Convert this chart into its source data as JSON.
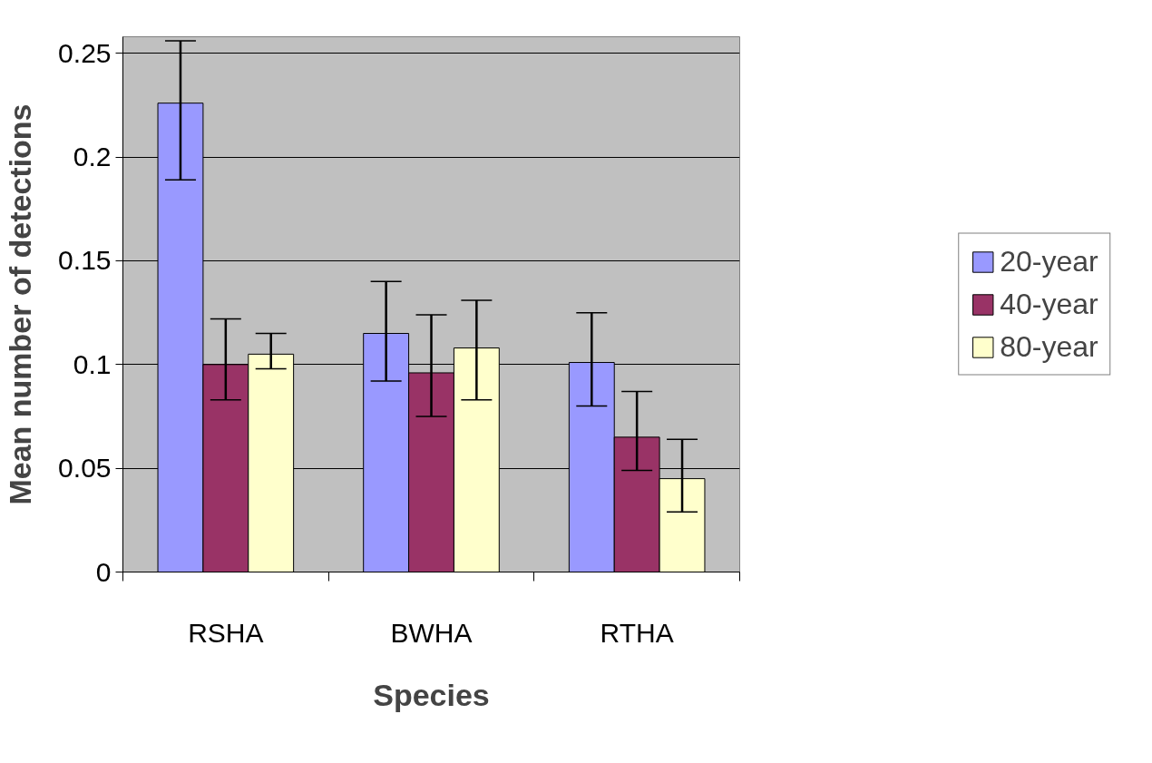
{
  "chart_data": {
    "type": "bar",
    "xlabel": "Species",
    "ylabel": "Mean number of detections",
    "categories": [
      "RSHA",
      "BWHA",
      "RTHA"
    ],
    "series": [
      {
        "name": "20-year",
        "color": "#9999ff",
        "values": [
          0.226,
          0.115,
          0.101
        ],
        "errors": [
          [
            0.189,
            0.256
          ],
          [
            0.092,
            0.14
          ],
          [
            0.08,
            0.125
          ]
        ]
      },
      {
        "name": "40-year",
        "color": "#993366",
        "values": [
          0.1,
          0.096,
          0.065
        ],
        "errors": [
          [
            0.083,
            0.122
          ],
          [
            0.075,
            0.124
          ],
          [
            0.049,
            0.087
          ]
        ]
      },
      {
        "name": "80-year",
        "color": "#ffffcc",
        "values": [
          0.105,
          0.108,
          0.045
        ],
        "errors": [
          [
            0.098,
            0.115
          ],
          [
            0.083,
            0.131
          ],
          [
            0.029,
            0.064
          ]
        ]
      }
    ],
    "ylim": [
      0,
      0.258
    ],
    "yticks": [
      0,
      0.05,
      0.1,
      0.15,
      0.2,
      0.25
    ],
    "grid": "y",
    "legend": "right"
  }
}
